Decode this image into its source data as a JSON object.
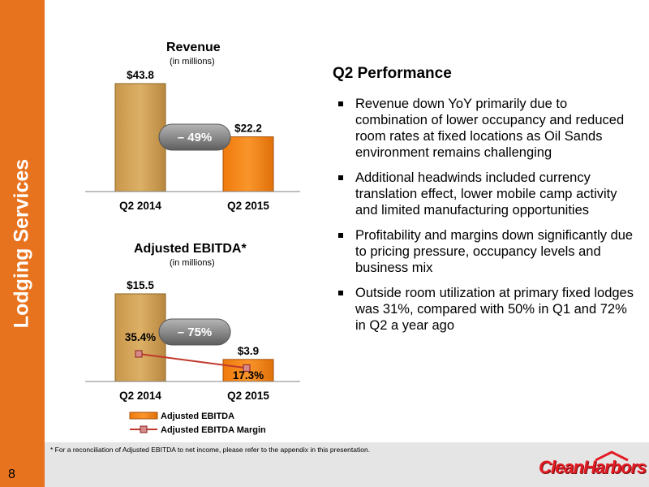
{
  "sidebar": {
    "title": "Lodging Services",
    "page_number": "8"
  },
  "revenue_panel": {
    "title": "Revenue",
    "subtitle": "(in millions)"
  },
  "ebitda_panel": {
    "title": "Adjusted EBITDA*",
    "subtitle": "(in millions)"
  },
  "content": {
    "heading": "Q2 Performance",
    "bullets": [
      "Revenue down YoY primarily due to combination of lower occupancy and reduced room rates at fixed locations as Oil Sands environment remains challenging",
      "Additional headwinds included currency translation effect, lower mobile camp activity and limited manufacturing opportunities",
      "Profitability and margins down significantly due to pricing pressure, occupancy levels and business mix",
      "Outside room utilization at primary fixed lodges was 31%, compared with 50% in Q1 and 72% in Q2 a year ago"
    ]
  },
  "footer": {
    "footnote": "* For a reconciliation of Adjusted EBITDA to net income, please refer to the appendix in this presentation.",
    "logo_text": "CleanHarbors"
  },
  "colors": {
    "sidebar": "#e8731e",
    "bar_2014": "#d4a554",
    "bar_2015": "#f5820f",
    "margin_line": "#c0392b",
    "callout": "#7f7f7f"
  },
  "chart_data": [
    {
      "type": "bar",
      "title": "Revenue",
      "subtitle": "(in millions)",
      "categories": [
        "Q2 2014",
        "Q2 2015"
      ],
      "values": [
        43.8,
        22.2
      ],
      "value_labels": [
        "$43.8",
        "$22.2"
      ],
      "callout": "– 49%",
      "ylim": [
        0,
        43.8
      ]
    },
    {
      "type": "bar",
      "title": "Adjusted EBITDA*",
      "subtitle": "(in millions)",
      "categories": [
        "Q2 2014",
        "Q2 2015"
      ],
      "series": [
        {
          "name": "Adjusted EBITDA",
          "type": "bar",
          "values": [
            15.5,
            3.9
          ],
          "value_labels": [
            "$15.5",
            "$3.9"
          ]
        },
        {
          "name": "Adjusted EBITDA Margin",
          "type": "line",
          "values": [
            35.4,
            17.3
          ],
          "value_labels": [
            "35.4%",
            "17.3%"
          ]
        }
      ],
      "callout": "– 75%",
      "ylim": [
        0,
        15.5
      ],
      "legend": "bottom"
    }
  ]
}
